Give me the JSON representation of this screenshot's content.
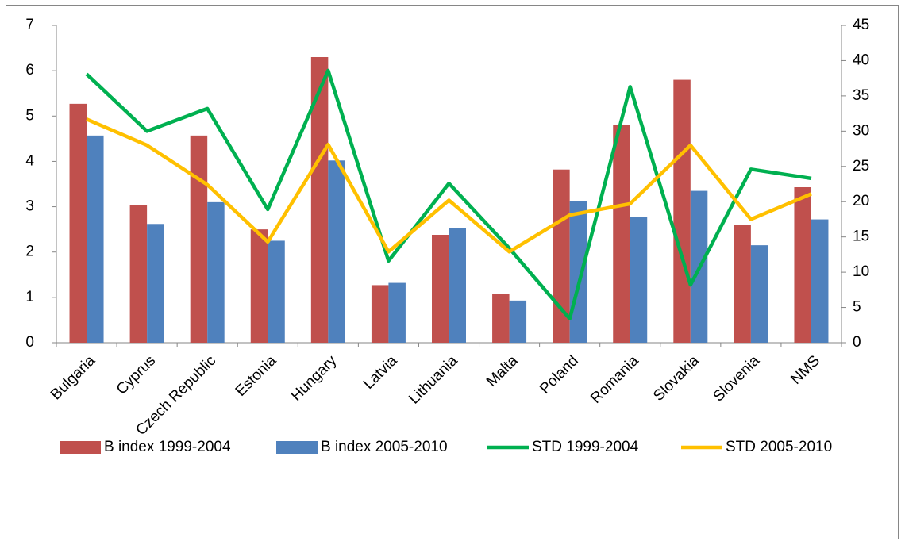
{
  "chart_data": {
    "type": "bar",
    "categories": [
      "Bulgaria",
      "Cyprus",
      "Czech Republic",
      "Estonia",
      "Hungary",
      "Latvia",
      "Lithuania",
      "Malta",
      "Poland",
      "Romania",
      "Slovakia",
      "Slovenia",
      "NMS"
    ],
    "series": [
      {
        "name": "B index 1999-2004",
        "type": "bar",
        "color": "#c0504d",
        "values": [
          5.27,
          3.03,
          4.57,
          2.5,
          6.3,
          1.27,
          2.38,
          1.07,
          3.82,
          4.8,
          5.8,
          2.6,
          3.43
        ]
      },
      {
        "name": "B index 2005-2010",
        "type": "bar",
        "color": "#4f81bd",
        "values": [
          4.57,
          2.62,
          3.1,
          2.25,
          4.02,
          1.32,
          2.52,
          0.93,
          3.12,
          2.77,
          3.35,
          2.15,
          2.72
        ]
      },
      {
        "name": "STD 1999-2004",
        "type": "line",
        "axis": "y2",
        "color": "#00b050",
        "values": [
          38.1,
          30.0,
          33.2,
          18.9,
          38.6,
          11.6,
          22.6,
          13.4,
          3.4,
          36.3,
          8.2,
          24.6,
          23.3
        ]
      },
      {
        "name": "STD 2005-2010",
        "type": "line",
        "axis": "y2",
        "color": "#ffc000",
        "values": [
          31.7,
          28.0,
          22.4,
          14.3,
          28.1,
          12.9,
          20.2,
          12.9,
          18.1,
          19.7,
          28.0,
          17.5,
          21.1
        ]
      }
    ],
    "ylim": [
      0,
      7
    ],
    "yticks": [
      0,
      1,
      2,
      3,
      4,
      5,
      6,
      7
    ],
    "y2lim": [
      0,
      45
    ],
    "y2ticks": [
      0,
      5,
      10,
      15,
      20,
      25,
      30,
      35,
      40,
      45
    ],
    "legend": "bottom"
  }
}
